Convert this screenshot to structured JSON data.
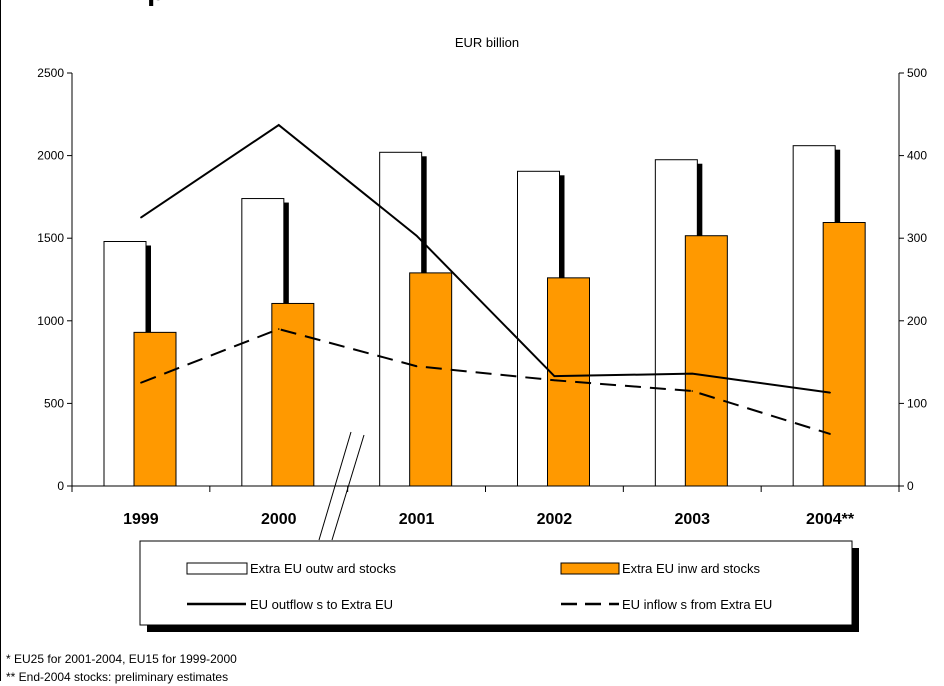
{
  "chart_data": {
    "type": "bar",
    "title": "",
    "unit_label": "EUR billion",
    "categories": [
      "1999",
      "2000",
      "2001",
      "2002",
      "2003",
      "2004**"
    ],
    "left_axis": {
      "min": 0,
      "max": 2500,
      "ticks": [
        "0",
        "500",
        "1000",
        "1500",
        "2000",
        "2500"
      ]
    },
    "right_axis": {
      "min": 0,
      "max": 500,
      "ticks": [
        "0",
        "100",
        "200",
        "300",
        "400",
        "500"
      ]
    },
    "grid": false,
    "legend_position": "bottom",
    "series": [
      {
        "name": "Extra EU outw ard stocks",
        "kind": "bar",
        "axis": "left",
        "color": "#ffffff",
        "values": [
          1480,
          1740,
          2020,
          1905,
          1975,
          2060
        ]
      },
      {
        "name": "Extra EU inw ard stocks",
        "kind": "bar",
        "axis": "left",
        "color": "#ff9900",
        "values": [
          930,
          1105,
          1290,
          1260,
          1515,
          1595
        ]
      },
      {
        "name": "EU outflow s to Extra EU",
        "kind": "line",
        "style": "solid",
        "axis": "right",
        "values": [
          325,
          437,
          303,
          133,
          136,
          113
        ]
      },
      {
        "name": "EU inflow s from Extra EU",
        "kind": "line",
        "style": "dashed",
        "axis": "right",
        "values": [
          125,
          190,
          145,
          128,
          115,
          63
        ]
      }
    ]
  },
  "footnotes": [
    "* EU25 for 2001-2004, EU15 for 1999-2000",
    "** End-2004 stocks: preliminary estimates"
  ]
}
